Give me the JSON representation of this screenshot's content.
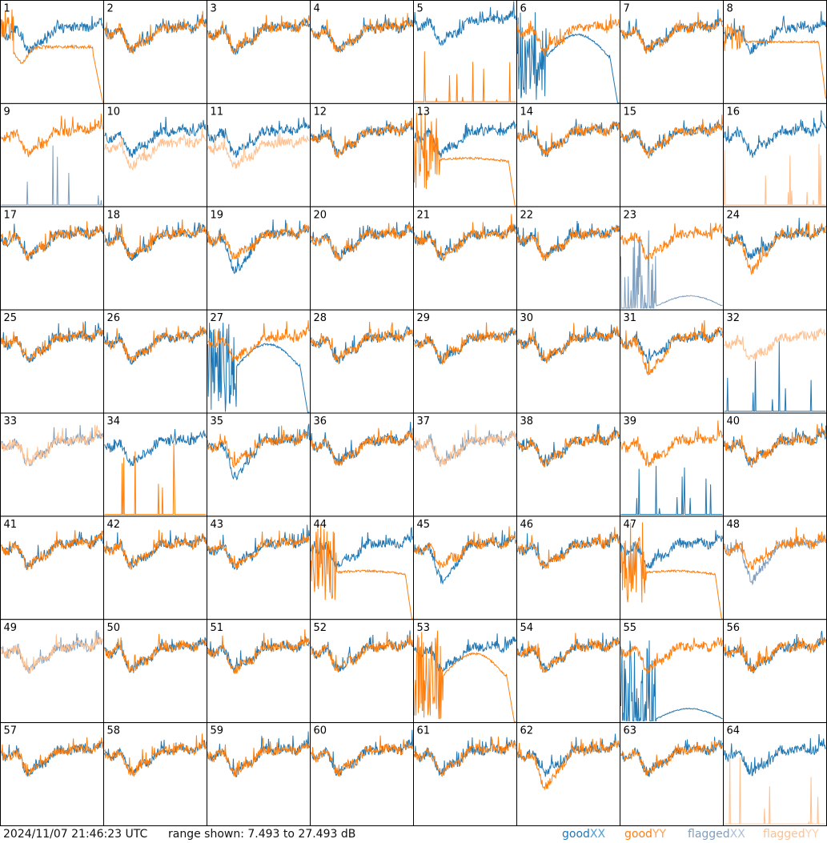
{
  "chart_data": {
    "type": "line",
    "grid": {
      "rows": 8,
      "cols": 8
    },
    "panels": [
      {
        "id": 1,
        "xx": "good",
        "yy": "good",
        "xx_profile": "ripple",
        "yy_profile": "dip_deep_drop",
        "note": "YY dips then drops at end"
      },
      {
        "id": 2,
        "xx": "good",
        "yy": "good",
        "xx_profile": "ripple",
        "yy_profile": "ripple"
      },
      {
        "id": 3,
        "xx": "good",
        "yy": "good",
        "xx_profile": "ripple",
        "yy_profile": "ripple"
      },
      {
        "id": 4,
        "xx": "good",
        "yy": "good",
        "xx_profile": "ripple",
        "yy_profile": "ripple"
      },
      {
        "id": 5,
        "xx": "good",
        "yy": "good",
        "xx_profile": "ripple_high",
        "yy_profile": "spikes_low"
      },
      {
        "id": 6,
        "xx": "good",
        "yy": "good",
        "xx_profile": "noisy_hump_drop",
        "yy_profile": "ripple"
      },
      {
        "id": 7,
        "xx": "good",
        "yy": "good",
        "xx_profile": "ripple",
        "yy_profile": "ripple"
      },
      {
        "id": 8,
        "xx": "good",
        "yy": "good",
        "xx_profile": "ripple",
        "yy_profile": "flat_drop"
      },
      {
        "id": 9,
        "xx": "flagged",
        "yy": "good",
        "xx_profile": "spikes_low",
        "yy_profile": "ripple"
      },
      {
        "id": 10,
        "xx": "good",
        "yy": "flagged",
        "xx_profile": "ripple",
        "yy_profile": "ripple_low"
      },
      {
        "id": 11,
        "xx": "good",
        "yy": "flagged",
        "xx_profile": "ripple",
        "yy_profile": "ripple_low"
      },
      {
        "id": 12,
        "xx": "good",
        "yy": "good",
        "xx_profile": "ripple",
        "yy_profile": "ripple"
      },
      {
        "id": 13,
        "xx": "good",
        "yy": "good",
        "xx_profile": "ripple",
        "yy_profile": "noisy_flat_drop"
      },
      {
        "id": 14,
        "xx": "good",
        "yy": "good",
        "xx_profile": "ripple",
        "yy_profile": "ripple"
      },
      {
        "id": 15,
        "xx": "good",
        "yy": "good",
        "xx_profile": "ripple",
        "yy_profile": "ripple"
      },
      {
        "id": 16,
        "xx": "good",
        "yy": "flagged",
        "xx_profile": "ripple",
        "yy_profile": "spikes_low"
      },
      {
        "id": 17,
        "xx": "good",
        "yy": "good",
        "xx_profile": "ripple",
        "yy_profile": "ripple"
      },
      {
        "id": 18,
        "xx": "good",
        "yy": "good",
        "xx_profile": "ripple",
        "yy_profile": "ripple"
      },
      {
        "id": 19,
        "xx": "good",
        "yy": "good",
        "xx_profile": "ripple_deep",
        "yy_profile": "ripple"
      },
      {
        "id": 20,
        "xx": "good",
        "yy": "good",
        "xx_profile": "ripple",
        "yy_profile": "ripple"
      },
      {
        "id": 21,
        "xx": "good",
        "yy": "good",
        "xx_profile": "ripple",
        "yy_profile": "ripple"
      },
      {
        "id": 22,
        "xx": "good",
        "yy": "good",
        "xx_profile": "ripple",
        "yy_profile": "ripple"
      },
      {
        "id": 23,
        "xx": "flagged",
        "yy": "good",
        "xx_profile": "spikes_hump",
        "yy_profile": "ripple"
      },
      {
        "id": 24,
        "xx": "good",
        "yy": "good",
        "xx_profile": "ripple",
        "yy_profile": "ripple_deep"
      },
      {
        "id": 25,
        "xx": "good",
        "yy": "good",
        "xx_profile": "ripple",
        "yy_profile": "ripple"
      },
      {
        "id": 26,
        "xx": "good",
        "yy": "good",
        "xx_profile": "ripple",
        "yy_profile": "ripple"
      },
      {
        "id": 27,
        "xx": "good",
        "yy": "good",
        "xx_profile": "noisy_hump_drop",
        "yy_profile": "ripple"
      },
      {
        "id": 28,
        "xx": "good",
        "yy": "good",
        "xx_profile": "ripple",
        "yy_profile": "ripple"
      },
      {
        "id": 29,
        "xx": "good",
        "yy": "good",
        "xx_profile": "ripple",
        "yy_profile": "ripple"
      },
      {
        "id": 30,
        "xx": "good",
        "yy": "good",
        "xx_profile": "ripple",
        "yy_profile": "ripple"
      },
      {
        "id": 31,
        "xx": "good",
        "yy": "good",
        "xx_profile": "ripple",
        "yy_profile": "ripple_deep"
      },
      {
        "id": 32,
        "xx": "good",
        "yy": "flagged",
        "xx_profile": "spikes_low",
        "yy_profile": "ripple"
      },
      {
        "id": 33,
        "xx": "flagged",
        "yy": "flagged",
        "xx_profile": "ripple",
        "yy_profile": "ripple"
      },
      {
        "id": 34,
        "xx": "good",
        "yy": "good",
        "xx_profile": "ripple",
        "yy_profile": "spikes_low"
      },
      {
        "id": 35,
        "xx": "good",
        "yy": "good",
        "xx_profile": "ripple_deep",
        "yy_profile": "ripple"
      },
      {
        "id": 36,
        "xx": "good",
        "yy": "good",
        "xx_profile": "ripple",
        "yy_profile": "ripple"
      },
      {
        "id": 37,
        "xx": "flagged",
        "yy": "flagged",
        "xx_profile": "ripple",
        "yy_profile": "ripple"
      },
      {
        "id": 38,
        "xx": "good",
        "yy": "good",
        "xx_profile": "ripple",
        "yy_profile": "ripple"
      },
      {
        "id": 39,
        "xx": "good",
        "yy": "good",
        "xx_profile": "spikes_low",
        "yy_profile": "ripple"
      },
      {
        "id": 40,
        "xx": "good",
        "yy": "good",
        "xx_profile": "ripple",
        "yy_profile": "ripple"
      },
      {
        "id": 41,
        "xx": "good",
        "yy": "good",
        "xx_profile": "ripple",
        "yy_profile": "ripple"
      },
      {
        "id": 42,
        "xx": "good",
        "yy": "good",
        "xx_profile": "ripple",
        "yy_profile": "ripple"
      },
      {
        "id": 43,
        "xx": "good",
        "yy": "good",
        "xx_profile": "ripple",
        "yy_profile": "ripple"
      },
      {
        "id": 44,
        "xx": "good",
        "yy": "good",
        "xx_profile": "ripple",
        "yy_profile": "noisy_flat_drop"
      },
      {
        "id": 45,
        "xx": "good",
        "yy": "good",
        "xx_profile": "ripple_deep",
        "yy_profile": "ripple"
      },
      {
        "id": 46,
        "xx": "good",
        "yy": "good",
        "xx_profile": "ripple",
        "yy_profile": "ripple"
      },
      {
        "id": 47,
        "xx": "good",
        "yy": "good",
        "xx_profile": "ripple",
        "yy_profile": "noisy_flat_drop"
      },
      {
        "id": 48,
        "xx": "flagged",
        "yy": "good",
        "xx_profile": "ripple_deep",
        "yy_profile": "ripple"
      },
      {
        "id": 49,
        "xx": "flagged",
        "yy": "flagged",
        "xx_profile": "ripple",
        "yy_profile": "ripple"
      },
      {
        "id": 50,
        "xx": "good",
        "yy": "good",
        "xx_profile": "ripple",
        "yy_profile": "ripple"
      },
      {
        "id": 51,
        "xx": "good",
        "yy": "good",
        "xx_profile": "ripple",
        "yy_profile": "ripple"
      },
      {
        "id": 52,
        "xx": "good",
        "yy": "good",
        "xx_profile": "ripple",
        "yy_profile": "ripple"
      },
      {
        "id": 53,
        "xx": "good",
        "yy": "good",
        "xx_profile": "ripple",
        "yy_profile": "noisy_hump_drop"
      },
      {
        "id": 54,
        "xx": "good",
        "yy": "good",
        "xx_profile": "ripple",
        "yy_profile": "ripple"
      },
      {
        "id": 55,
        "xx": "good",
        "yy": "good",
        "xx_profile": "spikes_hump",
        "yy_profile": "ripple"
      },
      {
        "id": 56,
        "xx": "good",
        "yy": "good",
        "xx_profile": "ripple",
        "yy_profile": "ripple"
      },
      {
        "id": 57,
        "xx": "good",
        "yy": "good",
        "xx_profile": "ripple",
        "yy_profile": "ripple"
      },
      {
        "id": 58,
        "xx": "good",
        "yy": "good",
        "xx_profile": "ripple",
        "yy_profile": "ripple"
      },
      {
        "id": 59,
        "xx": "good",
        "yy": "good",
        "xx_profile": "ripple",
        "yy_profile": "ripple"
      },
      {
        "id": 60,
        "xx": "good",
        "yy": "good",
        "xx_profile": "ripple",
        "yy_profile": "ripple"
      },
      {
        "id": 61,
        "xx": "good",
        "yy": "good",
        "xx_profile": "ripple",
        "yy_profile": "ripple"
      },
      {
        "id": 62,
        "xx": "good",
        "yy": "good",
        "xx_profile": "ripple",
        "yy_profile": "ripple_deep"
      },
      {
        "id": 63,
        "xx": "good",
        "yy": "good",
        "xx_profile": "ripple",
        "yy_profile": "ripple"
      },
      {
        "id": 64,
        "xx": "good",
        "yy": "flagged",
        "xx_profile": "ripple",
        "yy_profile": "spikes_low"
      }
    ],
    "ylim": [
      7.493,
      27.493
    ],
    "yunit": "dB",
    "legend": [
      {
        "label": "good XX",
        "color": "#1f77b4"
      },
      {
        "label": "good YY",
        "color": "#ff7f0e"
      },
      {
        "label": "flagged XX",
        "color": "#7f9fbf"
      },
      {
        "label": "flagged YY",
        "color": "#ffc08f"
      }
    ]
  },
  "footer": {
    "timestamp": "2024/11/07 21:46:23 UTC",
    "range_text": "range shown: 7.493 to 27.493 dB",
    "legend": {
      "good_prefix": "good ",
      "flagged_prefix": "flagged ",
      "xx": "XX",
      "yy": "YY"
    }
  }
}
